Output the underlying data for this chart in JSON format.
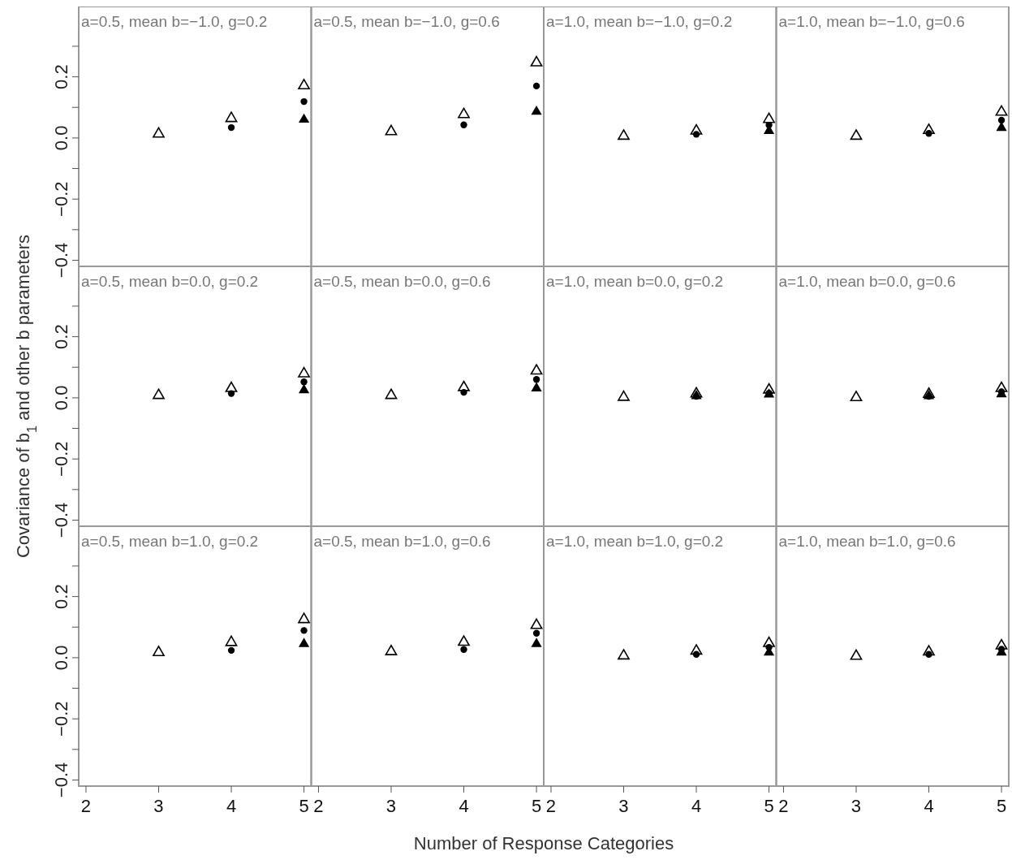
{
  "chart_data": [
    {
      "type": "scatter",
      "title": "a=0.5, mean b=−1.0, g=0.2",
      "xlim": [
        1.9,
        5.1
      ],
      "ylim": [
        -0.42,
        0.43
      ],
      "yticks": [
        {
          "value": -0.4,
          "label": "−0.4"
        },
        {
          "value": -0.3,
          "label": null
        },
        {
          "value": -0.2,
          "label": "−0.2"
        },
        {
          "value": -0.1,
          "label": null
        },
        {
          "value": 0,
          "label": "0.0"
        },
        {
          "value": 0.1,
          "label": null
        },
        {
          "value": 0.2,
          "label": "0.2"
        },
        {
          "value": 0.3,
          "label": null
        }
      ],
      "tick_labels": "y",
      "series": [
        {
          "color": "#000000",
          "marker": "triangle",
          "x": [
            3,
            4,
            5
          ],
          "values": [
            0.017,
            0.068,
            0.175
          ]
        },
        {
          "color": "#000000",
          "marker": "circle",
          "x": [
            4,
            5
          ],
          "values": [
            0.034,
            0.119
          ]
        },
        {
          "color": "#000000",
          "marker": "triangle",
          "x": [
            5
          ],
          "values": [
            0.064
          ]
        }
      ]
    },
    {
      "type": "scatter",
      "title": "a=0.5, mean b=−1.0, g=0.6",
      "xlim": [
        1.9,
        5.1
      ],
      "ylim": [
        -0.42,
        0.43
      ],
      "tick_labels": false,
      "series": [
        {
          "color": "#000000",
          "marker": "triangle",
          "x": [
            3,
            4,
            5
          ],
          "values": [
            0.025,
            0.081,
            0.25
          ]
        },
        {
          "color": "#000000",
          "marker": "circle",
          "x": [
            4,
            5
          ],
          "values": [
            0.043,
            0.17
          ]
        },
        {
          "color": "#000000",
          "marker": "triangle",
          "x": [
            5
          ],
          "values": [
            0.09
          ]
        }
      ]
    },
    {
      "type": "scatter",
      "title": "a=1.0, mean b=−1.0, g=0.2",
      "xlim": [
        1.9,
        5.1
      ],
      "ylim": [
        -0.42,
        0.43
      ],
      "tick_labels": false,
      "series": [
        {
          "color": "#000000",
          "marker": "triangle",
          "x": [
            3,
            4,
            5
          ],
          "values": [
            0.01,
            0.027,
            0.065
          ]
        },
        {
          "color": "#000000",
          "marker": "circle",
          "x": [
            4,
            5
          ],
          "values": [
            0.012,
            0.042
          ]
        },
        {
          "color": "#000000",
          "marker": "triangle",
          "x": [
            5
          ],
          "values": [
            0.027
          ]
        }
      ]
    },
    {
      "type": "scatter",
      "title": "a=1.0, mean b=−1.0, g=0.6",
      "xlim": [
        1.9,
        5.1
      ],
      "ylim": [
        -0.42,
        0.43
      ],
      "tick_labels": false,
      "series": [
        {
          "color": "#000000",
          "marker": "triangle",
          "x": [
            3,
            4,
            5
          ],
          "values": [
            0.01,
            0.029,
            0.089
          ]
        },
        {
          "color": "#000000",
          "marker": "circle",
          "x": [
            4,
            5
          ],
          "values": [
            0.015,
            0.058
          ]
        },
        {
          "color": "#000000",
          "marker": "triangle",
          "x": [
            5
          ],
          "values": [
            0.037
          ]
        }
      ]
    },
    {
      "type": "scatter",
      "title": "a=0.5, mean b=0.0, g=0.2",
      "ylabel": "Covariance of b$_{1}$ and other b parameters",
      "xlim": [
        1.9,
        5.1
      ],
      "ylim": [
        -0.42,
        0.43
      ],
      "yticks": [
        {
          "value": -0.4,
          "label": "−0.4"
        },
        {
          "value": -0.3,
          "label": null
        },
        {
          "value": -0.2,
          "label": "−0.2"
        },
        {
          "value": -0.1,
          "label": null
        },
        {
          "value": 0,
          "label": "0.0"
        },
        {
          "value": 0.1,
          "label": null
        },
        {
          "value": 0.2,
          "label": "0.2"
        },
        {
          "value": 0.3,
          "label": null
        }
      ],
      "tick_labels": "y",
      "series": [
        {
          "color": "#000000",
          "marker": "triangle",
          "x": [
            3,
            4,
            5
          ],
          "values": [
            0.012,
            0.035,
            0.083
          ]
        },
        {
          "color": "#000000",
          "marker": "circle",
          "x": [
            4,
            5
          ],
          "values": [
            0.014,
            0.052
          ]
        },
        {
          "color": "#000000",
          "marker": "triangle",
          "x": [
            5
          ],
          "values": [
            0.029
          ]
        }
      ]
    },
    {
      "type": "scatter",
      "title": "a=0.5, mean b=0.0, g=0.6",
      "xlim": [
        1.9,
        5.1
      ],
      "ylim": [
        -0.42,
        0.43
      ],
      "tick_labels": false,
      "series": [
        {
          "color": "#000000",
          "marker": "triangle",
          "x": [
            3,
            4,
            5
          ],
          "values": [
            0.012,
            0.038,
            0.092
          ]
        },
        {
          "color": "#000000",
          "marker": "circle",
          "x": [
            4,
            5
          ],
          "values": [
            0.018,
            0.06
          ]
        },
        {
          "color": "#000000",
          "marker": "triangle",
          "x": [
            5
          ],
          "values": [
            0.035
          ]
        }
      ]
    },
    {
      "type": "scatter",
      "title": "a=1.0, mean b=0.0, g=0.2",
      "xlim": [
        1.9,
        5.1
      ],
      "ylim": [
        -0.42,
        0.43
      ],
      "tick_labels": false,
      "series": [
        {
          "color": "#000000",
          "marker": "triangle",
          "x": [
            3,
            4,
            5
          ],
          "values": [
            0.006,
            0.017,
            0.03
          ]
        },
        {
          "color": "#000000",
          "marker": "circle",
          "x": [
            4,
            5
          ],
          "values": [
            0.005,
            0.015
          ]
        },
        {
          "color": "#000000",
          "marker": "triangle",
          "x": [
            4,
            5
          ],
          "values": [
            0.01,
            0.015
          ]
        }
      ]
    },
    {
      "type": "scatter",
      "title": "a=1.0, mean b=0.0, g=0.6",
      "xlim": [
        1.9,
        5.1
      ],
      "ylim": [
        -0.42,
        0.43
      ],
      "tick_labels": false,
      "series": [
        {
          "color": "#000000",
          "marker": "triangle",
          "x": [
            3,
            4,
            5
          ],
          "values": [
            0.005,
            0.016,
            0.035
          ]
        },
        {
          "color": "#000000",
          "marker": "circle",
          "x": [
            4,
            5
          ],
          "values": [
            0.005,
            0.02
          ]
        },
        {
          "color": "#000000",
          "marker": "triangle",
          "x": [
            4,
            5
          ],
          "values": [
            0.01,
            0.016
          ]
        }
      ]
    },
    {
      "type": "scatter",
      "title": "a=0.5, mean b=1.0, g=0.2",
      "xlim": [
        1.9,
        5.1
      ],
      "xticks": [
        2,
        3,
        4,
        5
      ],
      "ylim": [
        -0.42,
        0.43
      ],
      "yticks": [
        {
          "value": -0.4,
          "label": "−0.4"
        },
        {
          "value": -0.3,
          "label": null
        },
        {
          "value": -0.2,
          "label": "−0.2"
        },
        {
          "value": -0.1,
          "label": null
        },
        {
          "value": 0,
          "label": "0.0"
        },
        {
          "value": 0.1,
          "label": null
        },
        {
          "value": 0.2,
          "label": "0.2"
        },
        {
          "value": 0.3,
          "label": null
        }
      ],
      "series": [
        {
          "color": "#000000",
          "marker": "triangle",
          "x": [
            3,
            4,
            5
          ],
          "values": [
            0.021,
            0.054,
            0.129
          ]
        },
        {
          "color": "#000000",
          "marker": "circle",
          "x": [
            4,
            5
          ],
          "values": [
            0.024,
            0.089
          ]
        },
        {
          "color": "#000000",
          "marker": "triangle",
          "x": [
            5
          ],
          "values": [
            0.049
          ]
        }
      ]
    },
    {
      "type": "scatter",
      "title": "a=0.5, mean b=1.0, g=0.6",
      "xlabel": "Number of Response Categories",
      "xlim": [
        1.9,
        5.1
      ],
      "xticks": [
        2,
        3,
        4,
        5
      ],
      "ylim": [
        -0.42,
        0.43
      ],
      "tick_labels": "x",
      "series": [
        {
          "color": "#000000",
          "marker": "triangle",
          "x": [
            3,
            4,
            5
          ],
          "values": [
            0.024,
            0.055,
            0.11
          ]
        },
        {
          "color": "#000000",
          "marker": "circle",
          "x": [
            4,
            5
          ],
          "values": [
            0.027,
            0.08
          ]
        },
        {
          "color": "#000000",
          "marker": "triangle",
          "x": [
            5
          ],
          "values": [
            0.049
          ]
        }
      ]
    },
    {
      "type": "scatter",
      "title": "a=1.0, mean b=1.0, g=0.2",
      "xlim": [
        1.9,
        5.1
      ],
      "xticks": [
        2,
        3,
        4,
        5
      ],
      "ylim": [
        -0.42,
        0.43
      ],
      "tick_labels": "x",
      "series": [
        {
          "color": "#000000",
          "marker": "triangle",
          "x": [
            3,
            4,
            5
          ],
          "values": [
            0.01,
            0.026,
            0.051
          ]
        },
        {
          "color": "#000000",
          "marker": "circle",
          "x": [
            4,
            5
          ],
          "values": [
            0.011,
            0.034
          ]
        },
        {
          "color": "#000000",
          "marker": "triangle",
          "x": [
            5
          ],
          "values": [
            0.021
          ]
        }
      ]
    },
    {
      "type": "scatter",
      "title": "a=1.0, mean b=1.0, g=0.6",
      "xlim": [
        1.9,
        5.1
      ],
      "xticks": [
        2,
        3,
        4,
        5
      ],
      "ylim": [
        -0.42,
        0.43
      ],
      "tick_labels": "x",
      "series": [
        {
          "color": "#000000",
          "marker": "triangle",
          "x": [
            3,
            4,
            5
          ],
          "values": [
            0.009,
            0.023,
            0.043
          ]
        },
        {
          "color": "#000000",
          "marker": "circle",
          "x": [
            4,
            5
          ],
          "values": [
            0.011,
            0.028
          ]
        },
        {
          "color": "#000000",
          "marker": "triangle",
          "x": [
            5
          ],
          "values": [
            0.021
          ]
        }
      ]
    }
  ]
}
